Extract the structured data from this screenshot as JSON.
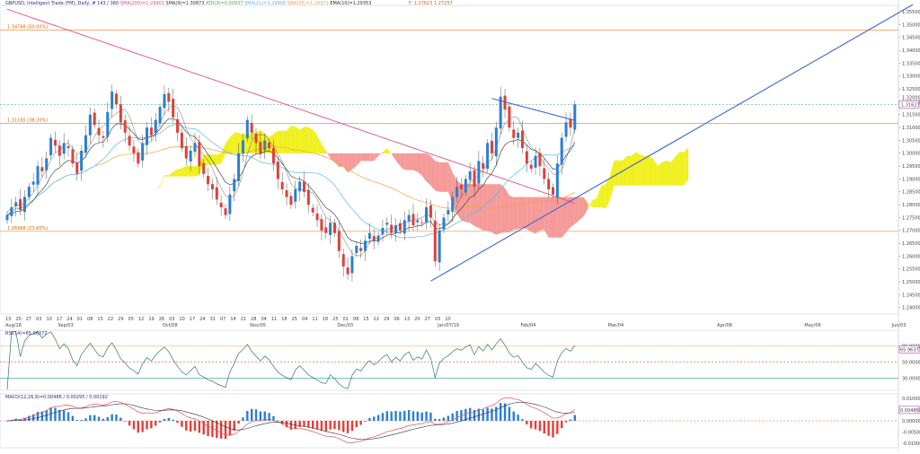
{
  "header": {
    "symbol_line": "GBPUSD, Intelligent Trade (FM), Daily, # 143 / 360",
    "sma200": "SMA(200)=1.29901",
    "sma9": "SMA(9)=1.30873",
    "atr": "ATR(9)=0.00937",
    "sma21": "SMA(21)=1.29958",
    "sma55": "SMA(55)=1.28371",
    "ema10": "EMA(10)=1.29353",
    "fibo_label": "F: 1.27623 1.27257"
  },
  "fibo_levels": [
    {
      "label": "1.34788 (50.00%)",
      "price": 1.34788
    },
    {
      "label": "1.31165 (38.20%)",
      "price": 1.31165
    },
    {
      "label": "1.26968 (23.60%)",
      "price": 1.26968
    }
  ],
  "current_price_label": "1.31627",
  "current_price_label2": "1.32000",
  "rsi_panel": {
    "label": "RSI(14)=65.96377",
    "value_label": "65.96377",
    "ticks": [
      "80.00000",
      "50.00000",
      "30.00000"
    ]
  },
  "macd_panel": {
    "label": "MACD(12,26,9)=0.00486 / 0.00295 / 0.00192",
    "value_label": "0.00486",
    "ticks": [
      "0.01000",
      "0.00500",
      "0.00000",
      "-0.00500",
      "-0.01000"
    ]
  },
  "colors": {
    "bull": "#2a7fd4",
    "bear": "#e0403a",
    "cloud_bear": "#f59a98",
    "cloud_bull": "#f0f020",
    "sma200": "#e64d87",
    "sma55": "#f0a040",
    "sma21": "#5bb8e8",
    "trend": "#3f64d6",
    "fib": "#f2a060"
  },
  "chart_data": {
    "type": "candlestick",
    "price_axis_ticks": [
      "1.35500",
      "1.35000",
      "1.34500",
      "1.34000",
      "1.33500",
      "1.33000",
      "1.32500",
      "1.32000",
      "1.31500",
      "1.31000",
      "1.30500",
      "1.30000",
      "1.29500",
      "1.29000",
      "1.28500",
      "1.28000",
      "1.27500",
      "1.27000",
      "1.26500",
      "1.26000",
      "1.25500",
      "1.25000",
      "1.24500",
      "1.24000"
    ],
    "ylim": [
      1.2375,
      1.3575
    ],
    "x_ticks_top": [
      "13",
      "20",
      "27",
      "03",
      "10",
      "17",
      "24",
      "01",
      "08",
      "15",
      "22",
      "29",
      "05",
      "12",
      "19",
      "26",
      "03",
      "10",
      "17",
      "24",
      "31",
      "07",
      "14",
      "21",
      "28",
      "04",
      "11",
      "18",
      "25",
      "04",
      "11",
      "18",
      "25",
      "01",
      "08",
      "15",
      "22",
      "29",
      "06",
      "13",
      "20",
      "27",
      "03",
      "10"
    ],
    "x_ticks_bottom": [
      {
        "label": "Aug/18",
        "i": 0
      },
      {
        "label": "Sep/03",
        "i": 12
      },
      {
        "label": "Oct/08",
        "i": 36
      },
      {
        "label": "Nov/05",
        "i": 56
      },
      {
        "label": "Dec/03",
        "i": 76
      },
      {
        "label": "Jan/07/19",
        "i": 99
      },
      {
        "label": "Feb/04",
        "i": 118
      },
      {
        "label": "Mar/04",
        "i": 138
      },
      {
        "label": "Apr/08",
        "i": 163
      },
      {
        "label": "May/06",
        "i": 183
      },
      {
        "label": "Jun/03",
        "i": 203
      }
    ],
    "closes": [
      1.276,
      1.279,
      1.281,
      1.278,
      1.283,
      1.287,
      1.289,
      1.295,
      1.293,
      1.298,
      1.306,
      1.303,
      1.299,
      1.304,
      1.302,
      1.296,
      1.292,
      1.301,
      1.307,
      1.315,
      1.311,
      1.307,
      1.306,
      1.316,
      1.324,
      1.319,
      1.312,
      1.308,
      1.303,
      1.3,
      1.296,
      1.304,
      1.31,
      1.307,
      1.313,
      1.318,
      1.323,
      1.32,
      1.314,
      1.308,
      1.302,
      1.298,
      1.301,
      1.304,
      1.295,
      1.292,
      1.288,
      1.286,
      1.282,
      1.279,
      1.276,
      1.284,
      1.29,
      1.3,
      1.305,
      1.313,
      1.308,
      1.304,
      1.3,
      1.305,
      1.302,
      1.296,
      1.29,
      1.286,
      1.283,
      1.28,
      1.286,
      1.289,
      1.285,
      1.28,
      1.277,
      1.274,
      1.27,
      1.269,
      1.273,
      1.269,
      1.262,
      1.256,
      1.253,
      1.26,
      1.264,
      1.262,
      1.266,
      1.269,
      1.266,
      1.268,
      1.271,
      1.273,
      1.269,
      1.272,
      1.27,
      1.274,
      1.276,
      1.272,
      1.274,
      1.273,
      1.279,
      1.275,
      1.258,
      1.27,
      1.275,
      1.278,
      1.283,
      1.287,
      1.286,
      1.29,
      1.293,
      1.287,
      1.297,
      1.294,
      1.304,
      1.3,
      1.31,
      1.322,
      1.317,
      1.31,
      1.306,
      1.308,
      1.302,
      1.296,
      1.294,
      1.299,
      1.295,
      1.29,
      1.286,
      1.284,
      1.296,
      1.306,
      1.312,
      1.31,
      1.319
    ],
    "rsi": {
      "ylim": [
        15,
        90
      ],
      "levels": [
        70,
        50,
        30
      ]
    },
    "macd": {
      "ylim": [
        -0.012,
        0.012
      ]
    }
  }
}
